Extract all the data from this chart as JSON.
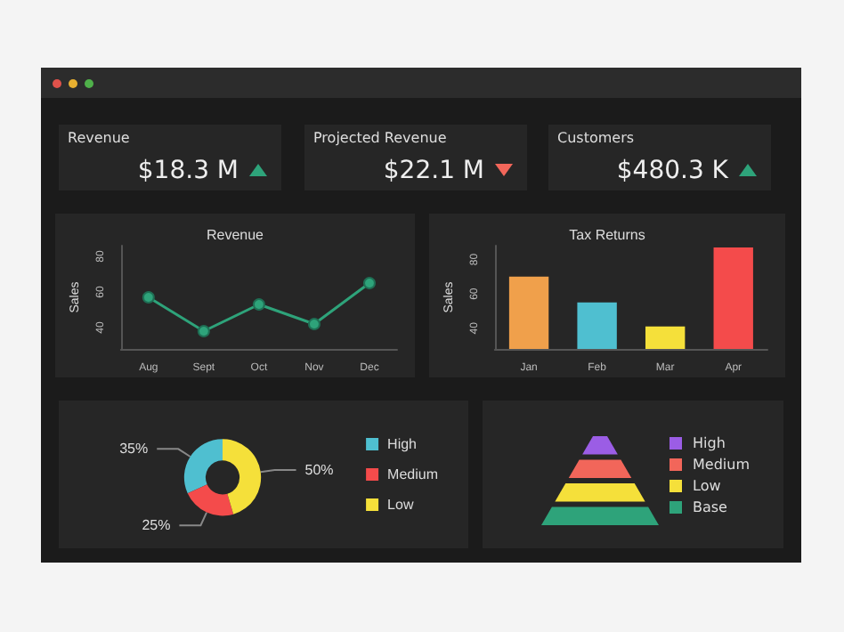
{
  "chart_data": [
    {
      "type": "other",
      "title": "Revenue",
      "annotations": [
        "$18.3 M"
      ]
    },
    {
      "type": "other",
      "title": "Projected Revenue",
      "annotations": [
        "$22.1 M"
      ]
    },
    {
      "type": "other",
      "title": "Customers",
      "annotations": [
        "$480.3 K"
      ]
    },
    {
      "type": "line",
      "title": "Revenue",
      "ylabel": "Sales",
      "categories": [
        "Aug",
        "Sept",
        "Oct",
        "Nov",
        "Dec"
      ],
      "series": [
        {
          "color": "#2ea37a",
          "values": [
            57,
            38,
            53,
            42,
            65
          ]
        }
      ],
      "ylim": [
        28,
        86
      ],
      "yticks": [
        40,
        60,
        80
      ],
      "marker": "circle",
      "grid": false,
      "legend": false
    },
    {
      "type": "bar",
      "title": "Tax Returns",
      "ylabel": "Sales",
      "categories": [
        "Jan",
        "Feb",
        "Mar",
        "Apr"
      ],
      "values": [
        70,
        55,
        41,
        87
      ],
      "colors": [
        "#f0a04b",
        "#4fbfd0",
        "#f5e03a",
        "#f44b4b"
      ],
      "ylim": [
        28,
        88
      ],
      "yticks": [
        40,
        60,
        80
      ],
      "grid": false,
      "legend": false
    },
    {
      "type": "donut",
      "categories": [
        "High",
        "Medium",
        "Low"
      ],
      "values": [
        35,
        25,
        50
      ],
      "colors": [
        "#4fbfd0",
        "#f44b4b",
        "#f5e03a"
      ],
      "value_labels": [
        "35%",
        "25%",
        "50%"
      ],
      "legend": "right"
    },
    {
      "type": "other",
      "categories": [
        "High",
        "Medium",
        "Low",
        "Base"
      ],
      "colors": [
        "#9b5de5",
        "#f2665a",
        "#f5e03a",
        "#2ea37a"
      ]
    }
  ]
}
